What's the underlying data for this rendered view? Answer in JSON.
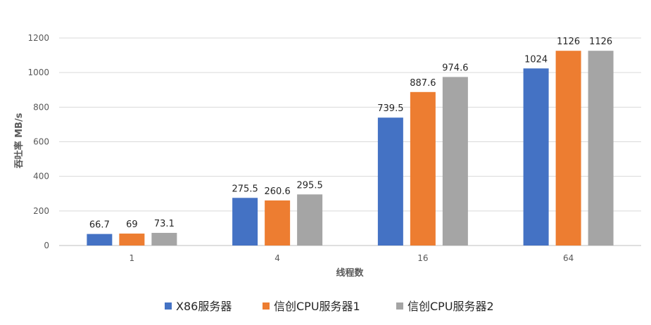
{
  "chart_data": {
    "type": "bar",
    "title": "",
    "xlabel": "线程数",
    "ylabel": "吞吐率 MB/s",
    "categories": [
      "1",
      "4",
      "16",
      "64"
    ],
    "series": [
      {
        "name": "X86服务器",
        "color": "#4472C4",
        "values": [
          66.7,
          275.5,
          739.5,
          1024
        ]
      },
      {
        "name": "信创CPU服务器1",
        "color": "#ED7D31",
        "values": [
          69,
          260.6,
          887.6,
          1126
        ]
      },
      {
        "name": "信创CPU服务器2",
        "color": "#A5A5A5",
        "values": [
          73.1,
          295.5,
          974.6,
          1126
        ]
      }
    ],
    "data_labels": [
      [
        "66.7",
        "275.5",
        "739.5",
        "1024"
      ],
      [
        "69",
        "260.6",
        "887.6",
        "1126"
      ],
      [
        "73.1",
        "295.5",
        "974.6",
        "1126"
      ]
    ],
    "ylim": [
      0,
      1200
    ],
    "yticks": [
      0,
      200,
      400,
      600,
      800,
      1000,
      1200
    ],
    "grid": true,
    "legend": "bottom"
  }
}
